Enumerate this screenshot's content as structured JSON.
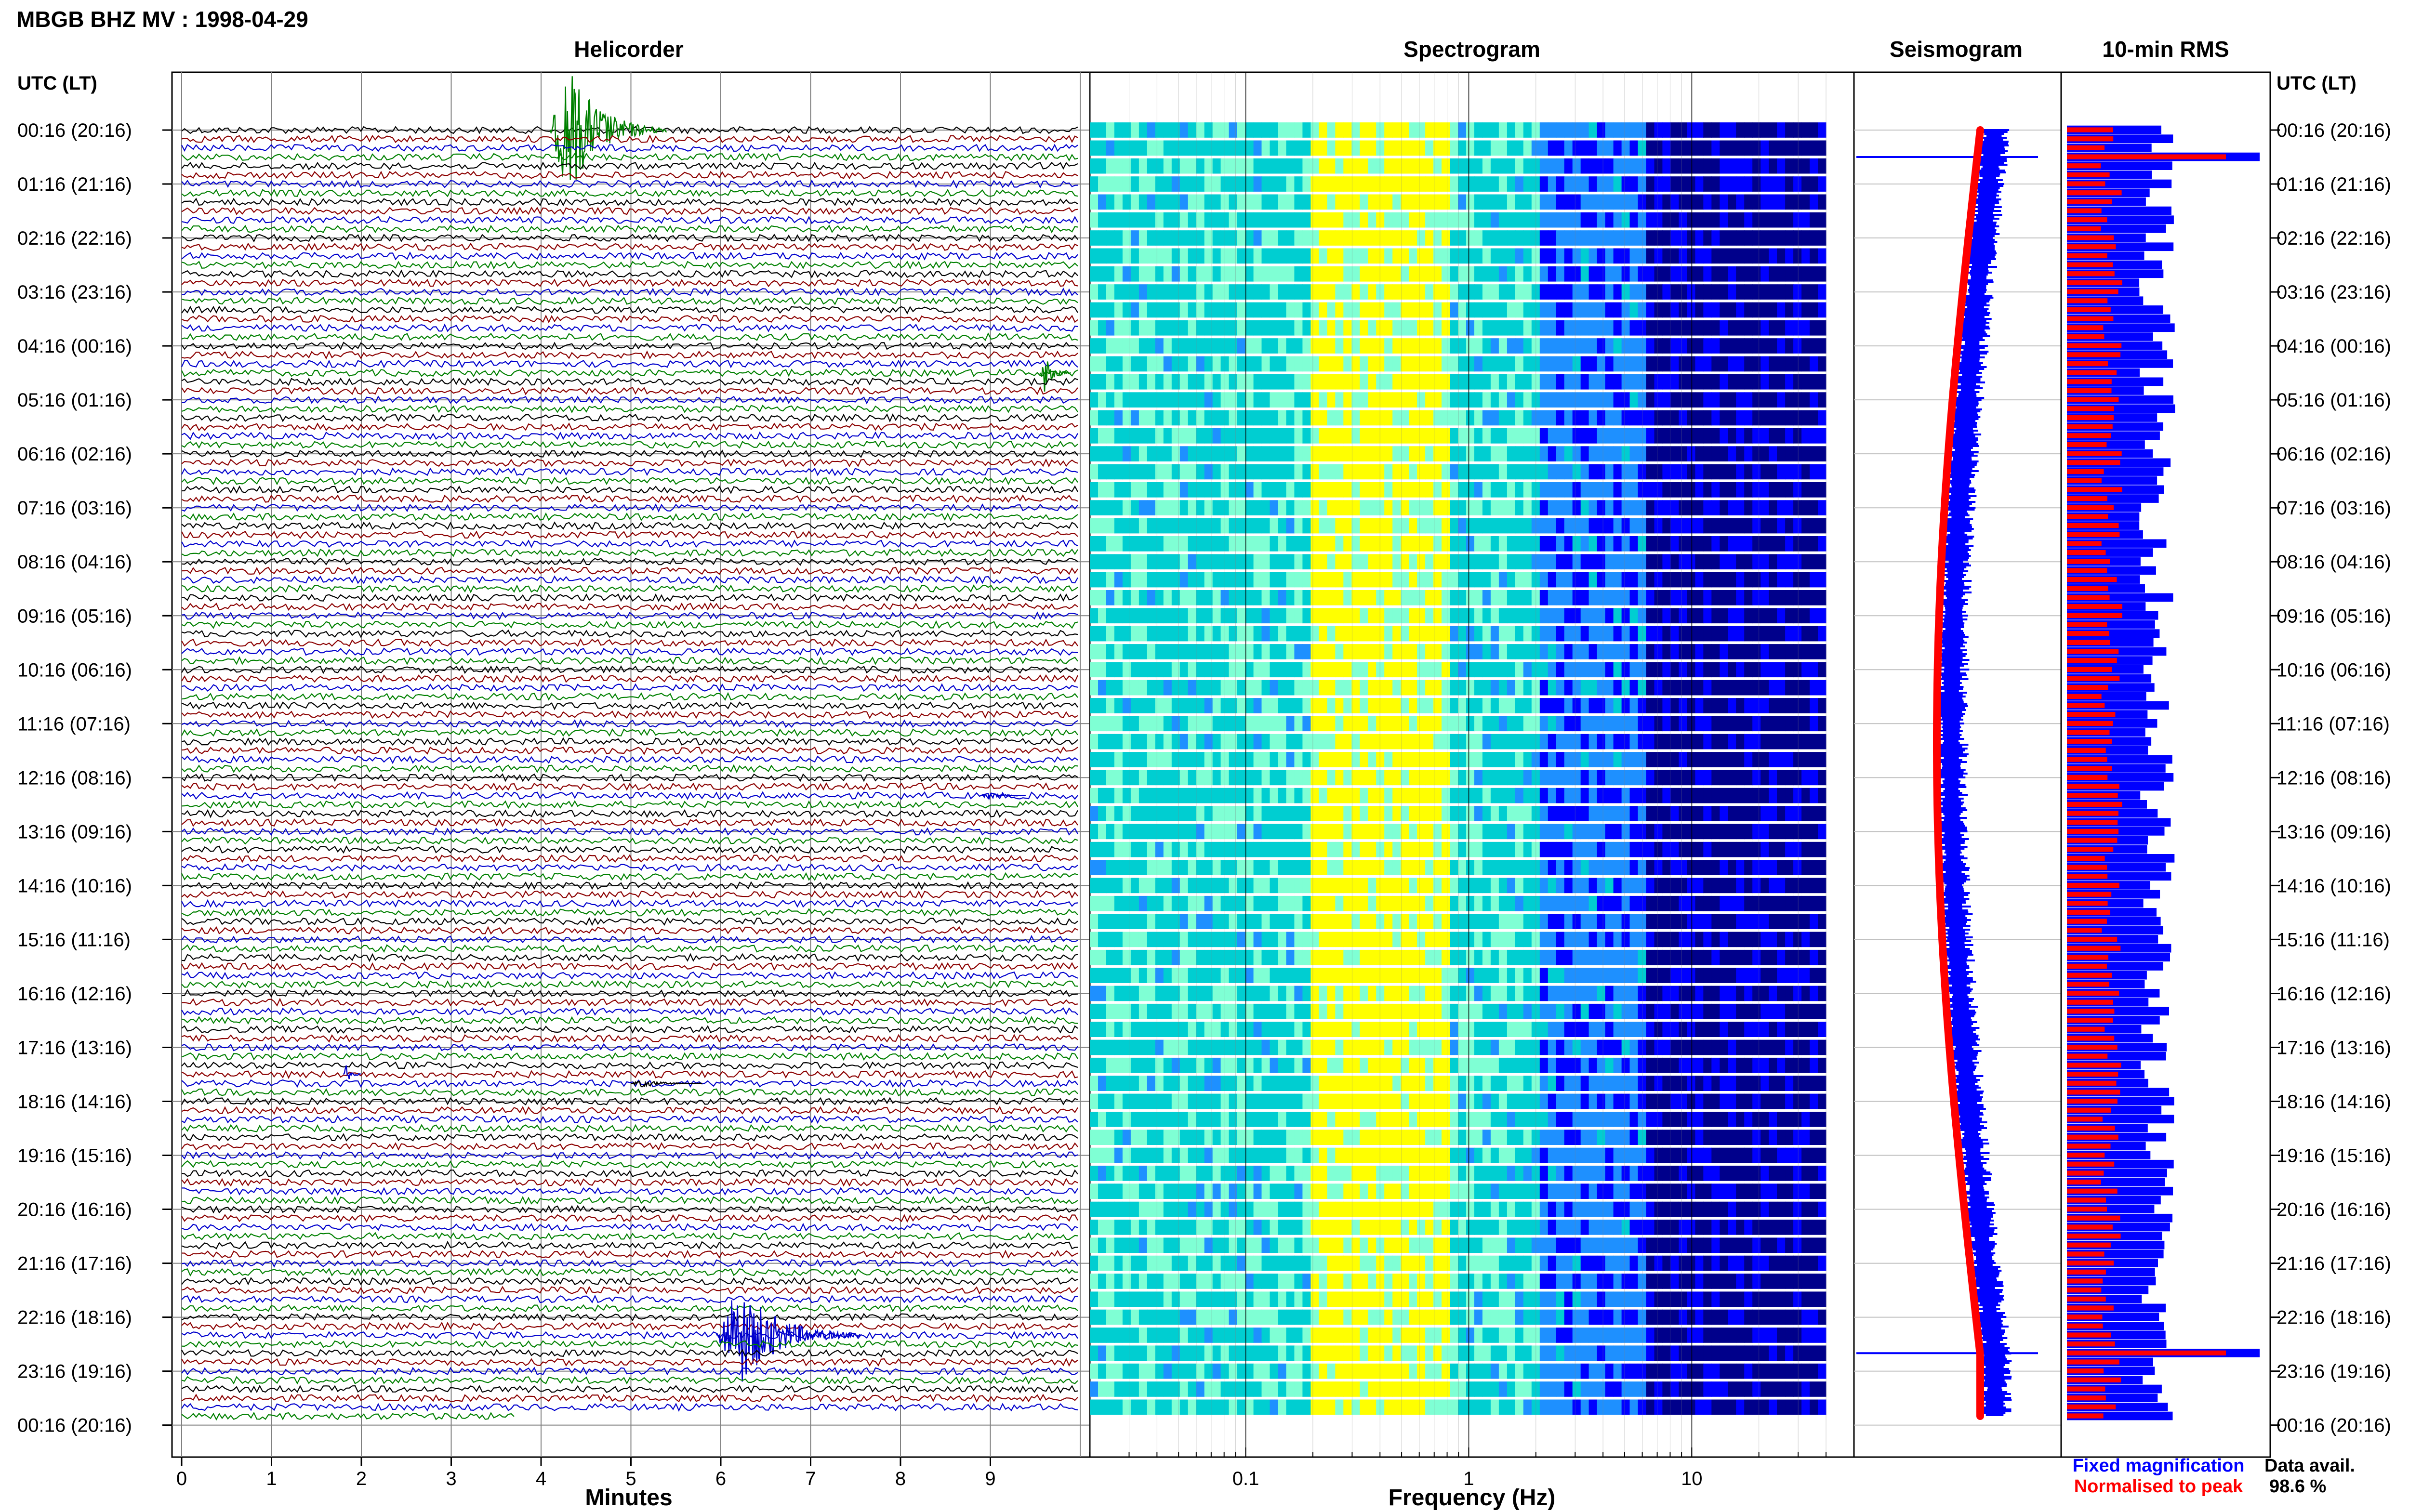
{
  "header": {
    "title": "MBGB BHZ MV : 1998-04-29"
  },
  "colors": {
    "trace_cycle": [
      "#000000",
      "#8b0000",
      "#0000cd",
      "#008000"
    ],
    "fixed": "#0000ff",
    "normalised": "#ff0000",
    "grid": "#808080"
  },
  "chart_data": [
    {
      "type": "line",
      "name": "helicorder",
      "title": "Helicorder",
      "xlabel": "Minutes",
      "xlim": [
        0,
        10
      ],
      "x_ticks": [
        "0",
        "1",
        "2",
        "3",
        "4",
        "5",
        "6",
        "7",
        "8",
        "9"
      ],
      "rows_per_hour": 6,
      "row_count": 144,
      "data_end_minute": 3.7,
      "events": [
        {
          "row": 0,
          "minute": 4.1,
          "duration": 1.3,
          "amplitude": 5,
          "color": "#008000"
        },
        {
          "row": 27,
          "minute": 9.55,
          "duration": 0.35,
          "amplitude": 1.4,
          "color": "#008000"
        },
        {
          "row": 134,
          "minute": 5.95,
          "duration": 1.6,
          "amplitude": 4,
          "color": "#0000cd"
        },
        {
          "row": 105,
          "minute": 1.8,
          "duration": 0.2,
          "amplitude": 0.8,
          "color": "#0000cd"
        },
        {
          "row": 74,
          "minute": 8.9,
          "duration": 0.5,
          "amplitude": 0.3,
          "color": "#0000cd"
        },
        {
          "row": 106,
          "minute": 5.0,
          "duration": 0.8,
          "amplitude": 0.3,
          "color": "#000000"
        }
      ]
    },
    {
      "type": "heatmap",
      "name": "spectrogram",
      "title": "Spectrogram",
      "xlabel": "Frequency (Hz)",
      "x_scale": "log",
      "xlim": [
        0.02,
        40
      ],
      "x_tick_values": [
        0.1,
        1,
        10
      ],
      "x_ticks": [
        "0.1",
        "1",
        "10"
      ],
      "colormap": [
        "#00008b",
        "#0000ff",
        "#1e90ff",
        "#00ced1",
        "#7fffd4",
        "#ffff00"
      ]
    },
    {
      "type": "line",
      "name": "seismogram",
      "title": "Seismogram",
      "series": [
        {
          "name": "Fixed magnification",
          "color": "#0000ff"
        },
        {
          "name": "Normalised to peak",
          "color": "#ff0000"
        }
      ]
    },
    {
      "type": "bar",
      "name": "rms",
      "title": "10-min RMS",
      "orientation": "horizontal",
      "spikes": [
        3,
        136
      ]
    }
  ],
  "time_axis": {
    "header": "UTC (LT)",
    "labels": [
      "00:16 (20:16)",
      "01:16 (21:16)",
      "02:16 (22:16)",
      "03:16 (23:16)",
      "04:16 (00:16)",
      "05:16 (01:16)",
      "06:16 (02:16)",
      "07:16 (03:16)",
      "08:16 (04:16)",
      "09:16 (05:16)",
      "10:16 (06:16)",
      "11:16 (07:16)",
      "12:16 (08:16)",
      "13:16 (09:16)",
      "14:16 (10:16)",
      "15:16 (11:16)",
      "16:16 (12:16)",
      "17:16 (13:16)",
      "18:16 (14:16)",
      "19:16 (15:16)",
      "20:16 (16:16)",
      "21:16 (17:16)",
      "22:16 (18:16)",
      "23:16 (19:16)",
      "00:16 (20:16)"
    ]
  },
  "legend": {
    "fixed_label": "Fixed magnification",
    "normalised_label": "Normalised to peak"
  },
  "availability": {
    "label": "Data avail.",
    "value": "98.6 %"
  }
}
